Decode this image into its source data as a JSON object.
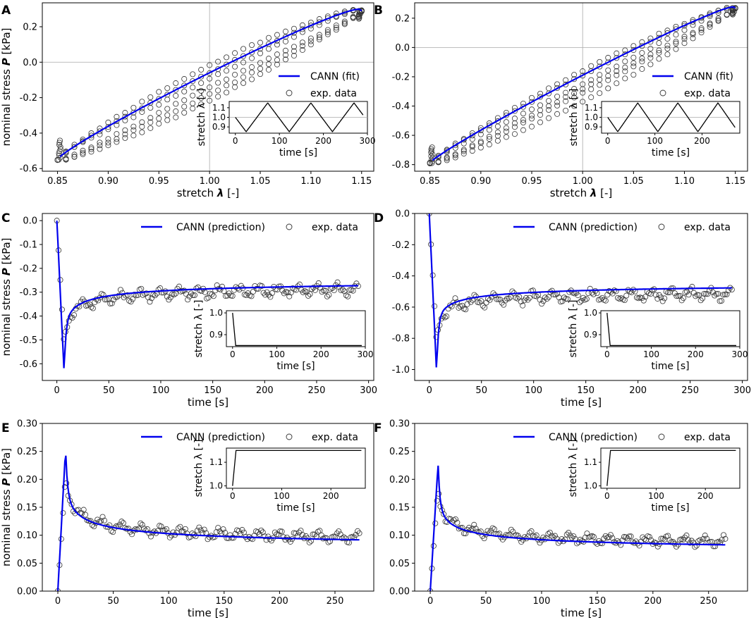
{
  "colors": {
    "fit": "#0000ee",
    "data": "#333333",
    "inset_line": "#000000",
    "guide": "#a9a9a9"
  },
  "chart_data": [
    {
      "panel": "A",
      "type": "scatter+line",
      "kind": "hysteresis",
      "xlabel_pre": "stretch ",
      "xlabel_sym": "λ",
      "xlabel_post": " [-]",
      "ylabel_pre": "nominal stress ",
      "ylabel_sym": "P",
      "ylabel_post": " [kPa]",
      "xlim": [
        0.835,
        1.162
      ],
      "ylim": [
        -0.615,
        0.335
      ],
      "xticks": [
        "0.85",
        "0.90",
        "0.95",
        "1.00",
        "1.05",
        "1.10",
        "1.15"
      ],
      "yticks": [
        "-0.6",
        "-0.4",
        "-0.2",
        "0.0",
        "0.2"
      ],
      "legend": [
        "CANN (fit)",
        "exp. data"
      ],
      "legend_position": "right",
      "model": {
        "a": 0.22,
        "c": 0.33,
        "pmin": -0.55,
        "pmax": 0.29
      },
      "data_offsets": [
        0.0,
        0.04,
        -0.035
      ],
      "inset": {
        "xlabel": "time [s]",
        "ylabel": "stretch λ [-]",
        "xticks": [
          "0",
          "100",
          "200",
          "300"
        ],
        "yticks": [
          "0.9",
          "1.0",
          "1.1"
        ],
        "tmax": 300,
        "period": 98,
        "ylim": [
          0.835,
          1.165
        ]
      }
    },
    {
      "panel": "B",
      "type": "scatter+line",
      "kind": "hysteresis",
      "xlabel_pre": "stretch ",
      "xlabel_sym": "λ",
      "xlabel_post": " [-]",
      "xlim": [
        0.835,
        1.162
      ],
      "ylim": [
        -0.845,
        0.305
      ],
      "xticks": [
        "0.85",
        "0.90",
        "0.95",
        "1.00",
        "1.05",
        "1.10",
        "1.15"
      ],
      "yticks": [
        "-0.8",
        "-0.6",
        "-0.4",
        "-0.2",
        "0.0",
        "0.2"
      ],
      "legend": [
        "CANN (fit)",
        "exp. data"
      ],
      "legend_position": "right",
      "model": {
        "a": 0.11,
        "c": 0.33,
        "pmin": -0.79,
        "pmax": 0.27
      },
      "data_offsets": [
        0.0,
        0.03,
        -0.06
      ],
      "inset": {
        "xlabel": "time [s]",
        "ylabel": "stretch λ [-]",
        "xticks": [
          "0",
          "100",
          "200"
        ],
        "yticks": [
          "0.9",
          "1.0",
          "1.1"
        ],
        "tmax": 280,
        "period": 85,
        "ylim": [
          0.835,
          1.165
        ]
      }
    },
    {
      "panel": "C",
      "type": "scatter+line",
      "kind": "relax",
      "xlabel": "time [s]",
      "ylabel_pre": "nominal stress ",
      "ylabel_sym": "P",
      "ylabel_post": " [kPa]",
      "xlim": [
        -14,
        305
      ],
      "ylim": [
        -0.67,
        0.03
      ],
      "xticks": [
        "0",
        "50",
        "100",
        "150",
        "200",
        "250",
        "300"
      ],
      "yticks": [
        "0.0",
        "-0.1",
        "-0.2",
        "-0.3",
        "-0.4",
        "-0.5",
        "-0.6"
      ],
      "legend": [
        "CANN (prediction)",
        "exp. data"
      ],
      "legend_position": "top",
      "model": {
        "peak": -0.64,
        "p10": -0.46,
        "pend": -0.225,
        "tend": 290,
        "dend": -0.26
      },
      "inset": {
        "xlabel": "time [s]",
        "ylabel": "stretch λ [-]",
        "xticks": [
          "0",
          "100",
          "200",
          "300"
        ],
        "yticks": [
          "0.9",
          "1.0"
        ],
        "tmax": 300,
        "from": 1.0,
        "to": 0.85,
        "ylim": [
          0.845,
          1.01
        ]
      }
    },
    {
      "panel": "D",
      "type": "scatter+line",
      "kind": "relax",
      "xlabel": "time [s]",
      "xlim": [
        -14,
        305
      ],
      "ylim": [
        -1.07,
        0.0
      ],
      "xticks": [
        "0",
        "50",
        "100",
        "150",
        "200",
        "250",
        "300"
      ],
      "yticks": [
        "0.0",
        "-0.2",
        "-0.4",
        "-0.6",
        "-0.8",
        "-1.0"
      ],
      "legend": [
        "CANN (prediction)",
        "exp. data"
      ],
      "legend_position": "top",
      "model": {
        "peak": -1.02,
        "p10": -0.72,
        "pend": -0.415,
        "tend": 290,
        "dend": -0.48
      },
      "inset": {
        "xlabel": "time [s]",
        "ylabel": "stretch λ [-]",
        "xticks": [
          "0",
          "100",
          "200",
          "300"
        ],
        "yticks": [
          "0.9",
          "1.0"
        ],
        "tmax": 300,
        "from": 1.0,
        "to": 0.85,
        "ylim": [
          0.845,
          1.01
        ]
      }
    },
    {
      "panel": "E",
      "type": "scatter+line",
      "kind": "relax",
      "xlabel": "time [s]",
      "ylabel_pre": "nominal stress ",
      "ylabel_sym": "P",
      "ylabel_post": " [kPa]",
      "xlim": [
        -14,
        285
      ],
      "ylim": [
        0.0,
        0.3
      ],
      "xticks": [
        "0",
        "50",
        "100",
        "150",
        "200",
        "250"
      ],
      "yticks": [
        "0.00",
        "0.05",
        "0.10",
        "0.15",
        "0.20",
        "0.25",
        "0.30"
      ],
      "legend": [
        "CANN (prediction)",
        "exp. data"
      ],
      "legend_position": "top",
      "model": {
        "peak": 0.256,
        "p10": 0.19,
        "pend": 0.066,
        "tend": 272,
        "dend": 0.08
      },
      "inset": {
        "xlabel": "time [s]",
        "ylabel": "stretch λ [-]",
        "xticks": [
          "0",
          "100",
          "200"
        ],
        "yticks": [
          "1.0",
          "1.1"
        ],
        "tmax": 270,
        "from": 1.0,
        "to": 1.15,
        "ylim": [
          0.99,
          1.16
        ]
      }
    },
    {
      "panel": "F",
      "type": "scatter+line",
      "kind": "relax",
      "xlabel": "time [s]",
      "xlim": [
        -14,
        285
      ],
      "ylim": [
        0.0,
        0.3
      ],
      "xticks": [
        "0",
        "50",
        "100",
        "150",
        "200",
        "250"
      ],
      "yticks": [
        "0.00",
        "0.05",
        "0.10",
        "0.15",
        "0.20",
        "0.25",
        "0.30"
      ],
      "legend": [
        "CANN (prediction)",
        "exp. data"
      ],
      "legend_position": "top",
      "model": {
        "peak": 0.228,
        "p10": 0.165,
        "pend": 0.061,
        "tend": 265,
        "dend": 0.075
      },
      "inset": {
        "xlabel": "time [s]",
        "ylabel": "stretch λ [-]",
        "xticks": [
          "0",
          "100",
          "200"
        ],
        "yticks": [
          "1.0",
          "1.1"
        ],
        "tmax": 270,
        "from": 1.0,
        "to": 1.15,
        "ylim": [
          0.99,
          1.16
        ]
      }
    }
  ]
}
